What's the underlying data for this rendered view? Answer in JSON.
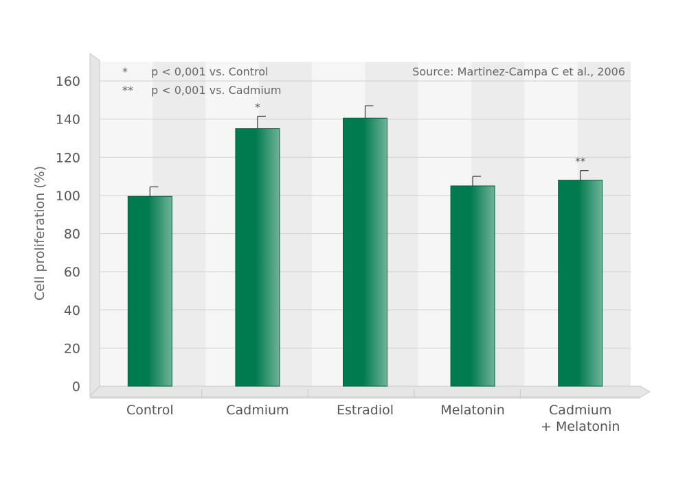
{
  "chart_data": {
    "type": "bar",
    "categories": [
      [
        "Control"
      ],
      [
        "Cadmium"
      ],
      [
        "Estradiol"
      ],
      [
        "Melatonin"
      ],
      [
        "Cadmium",
        "+ Melatonin"
      ]
    ],
    "values": [
      99.5,
      135,
      140.5,
      105,
      108
    ],
    "errors": [
      5,
      6.5,
      6.5,
      5,
      5
    ],
    "significance": [
      "",
      "*",
      "",
      "",
      "**"
    ],
    "ylabel": "Cell proliferation (%)",
    "ylim": [
      0,
      160
    ],
    "yticks": [
      0,
      20,
      40,
      60,
      80,
      100,
      120,
      140,
      160
    ],
    "grid": true,
    "legend_notes": [
      {
        "symbol": "*",
        "text": "p < 0,001 vs. Control"
      },
      {
        "symbol": "**",
        "text": "p < 0,001 vs. Cadmium"
      }
    ],
    "source": "Source: Martinez-Campa C et al., 2006",
    "colors": {
      "bar_dark": "#007a4f",
      "bar_light": "#6fb397",
      "bar_edge": "#005c3a",
      "grid": "#d0d0d0",
      "band_dark": "#ececec",
      "band_light": "#f6f6f6"
    }
  }
}
